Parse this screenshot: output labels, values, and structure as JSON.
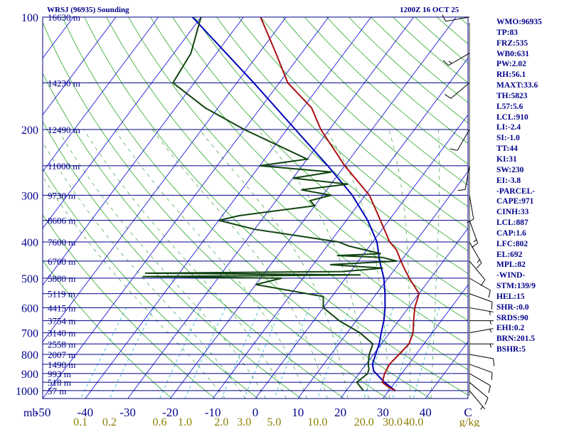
{
  "header": {
    "station": "WRSJ (96935) Sounding",
    "time": "1200Z 16 OCT 25"
  },
  "stats": [
    "WMO:96935",
    "TP:83",
    "FRZ:535",
    "WB0:631",
    "PW:2.02",
    "RH:56.1",
    "MAXT:33.6",
    "TH:5823",
    "L57:5.6",
    "LCL:910",
    "LI:-2.4",
    "SI:-1.0",
    "TT:44",
    "KI:31",
    "SW:230",
    "EI:-3.8",
    "-PARCEL-",
    "CAPE:971",
    "CINH:33",
    "LCL:887",
    "CAP:1.6",
    "LFC:802",
    "EL:692",
    "MPL:82",
    "-WIND-",
    "STM:139/9",
    "HEL:15",
    "SHR-:0.0",
    "SRDS:90",
    "EHI:0.2",
    "BRN:201.5",
    "BSHR:5"
  ],
  "colors": {
    "isobar": "#00008b",
    "isotherm": "#1c1cd8",
    "dry_adiabat": "#2aa82a",
    "moist_adiabat": "#3c9c3c",
    "mixing_ratio": "#22b4d4",
    "temperature": "#aa1111",
    "dewpoint": "#114411",
    "parcel": "#0000bb",
    "mixing_label": "#8b7d00",
    "wind": "#000000"
  },
  "chart_data": {
    "type": "skew-t",
    "pressure_labels": [
      "100",
      "200",
      "300",
      "400",
      "500",
      "600",
      "700",
      "800",
      "900",
      "1000"
    ],
    "pressure_unit": "mb",
    "temperature_ticks": [
      -50,
      -40,
      -30,
      -20,
      -10,
      0,
      10,
      20,
      30,
      40
    ],
    "temperature_axis_label": "C",
    "temperature_range": [
      -50,
      50
    ],
    "pressure_range": [
      100,
      1050
    ],
    "height_labels": [
      {
        "p": 100,
        "label": "16630 m"
      },
      {
        "p": 150,
        "label": "14230 m"
      },
      {
        "p": 200,
        "label": "12490 m"
      },
      {
        "p": 250,
        "label": "11000 m"
      },
      {
        "p": 300,
        "label": "9730 m"
      },
      {
        "p": 350,
        "label": "8606 m"
      },
      {
        "p": 400,
        "label": "7600 m"
      },
      {
        "p": 450,
        "label": "6700 m"
      },
      {
        "p": 500,
        "label": "5880 m"
      },
      {
        "p": 550,
        "label": "5119 m"
      },
      {
        "p": 600,
        "label": "4415 m"
      },
      {
        "p": 650,
        "label": "3754 m"
      },
      {
        "p": 700,
        "label": "3140 m"
      },
      {
        "p": 750,
        "label": "2558 m"
      },
      {
        "p": 800,
        "label": "2007 m"
      },
      {
        "p": 850,
        "label": "1490 m"
      },
      {
        "p": 900,
        "label": "993 m"
      },
      {
        "p": 950,
        "label": "518 m"
      },
      {
        "p": 1000,
        "label": "57 m"
      }
    ],
    "mixing_ratio_labels": [
      "0.1",
      "0.2",
      "0.6",
      "1.0",
      "2.0",
      "3.0",
      "5.0",
      "10.0",
      "20.0",
      "30.0",
      "40.0"
    ],
    "mixing_ratio_values": [
      0.1,
      0.2,
      0.6,
      1.0,
      2.0,
      3.0,
      5.0,
      10.0,
      20.0,
      30.0,
      40.0
    ],
    "mixing_ratio_unit": "g/kg",
    "isotherms_C": [
      -150,
      -140,
      -130,
      -120,
      -110,
      -100,
      -90,
      -80,
      -70,
      -60,
      -50,
      -40,
      -30,
      -20,
      -10,
      0,
      10,
      20,
      30,
      40,
      50
    ],
    "dry_adiabats_K": [
      250,
      260,
      270,
      280,
      290,
      300,
      310,
      320,
      330,
      340,
      350,
      360,
      370,
      380,
      390,
      400,
      410,
      420,
      430,
      440,
      450,
      460,
      470,
      480,
      490,
      500,
      510,
      520,
      530,
      540,
      550
    ],
    "moist_adiabats_C": [
      -10,
      -5,
      0,
      5,
      10,
      15,
      20,
      25,
      30,
      35,
      40
    ],
    "temperature": [
      {
        "p": 1000,
        "t": 31.5
      },
      {
        "p": 975,
        "t": 29
      },
      {
        "p": 950,
        "t": 27
      },
      {
        "p": 925,
        "t": 26.5
      },
      {
        "p": 900,
        "t": 26
      },
      {
        "p": 850,
        "t": 25.5
      },
      {
        "p": 800,
        "t": 26
      },
      {
        "p": 750,
        "t": 26.5
      },
      {
        "p": 700,
        "t": 25.5
      },
      {
        "p": 650,
        "t": 23.5
      },
      {
        "p": 600,
        "t": 21.5
      },
      {
        "p": 550,
        "t": 20
      },
      {
        "p": 500,
        "t": 15
      },
      {
        "p": 470,
        "t": 12
      },
      {
        "p": 450,
        "t": 10
      },
      {
        "p": 420,
        "t": 7
      },
      {
        "p": 400,
        "t": 4
      },
      {
        "p": 350,
        "t": -2
      },
      {
        "p": 300,
        "t": -9
      },
      {
        "p": 250,
        "t": -20
      },
      {
        "p": 200,
        "t": -32
      },
      {
        "p": 175,
        "t": -38
      },
      {
        "p": 150,
        "t": -48
      },
      {
        "p": 125,
        "t": -56
      },
      {
        "p": 100,
        "t": -66
      }
    ],
    "dewpoint": [
      {
        "p": 1000,
        "t": 24
      },
      {
        "p": 950,
        "t": 21
      },
      {
        "p": 900,
        "t": 22
      },
      {
        "p": 875,
        "t": 21.5
      },
      {
        "p": 850,
        "t": 20.5
      },
      {
        "p": 800,
        "t": 19
      },
      {
        "p": 750,
        "t": 18
      },
      {
        "p": 700,
        "t": 13
      },
      {
        "p": 650,
        "t": 6
      },
      {
        "p": 600,
        "t": 0
      },
      {
        "p": 560,
        "t": -2
      },
      {
        "p": 520,
        "t": -20
      },
      {
        "p": 500,
        "t": -15
      },
      {
        "p": 495,
        "t": -48
      },
      {
        "p": 490,
        "t": 3
      },
      {
        "p": 485,
        "t": -48
      },
      {
        "p": 480,
        "t": -2
      },
      {
        "p": 470,
        "t": 7
      },
      {
        "p": 460,
        "t": -6
      },
      {
        "p": 450,
        "t": 9
      },
      {
        "p": 440,
        "t": 5
      },
      {
        "p": 435,
        "t": -6
      },
      {
        "p": 430,
        "t": 4
      },
      {
        "p": 410,
        "t": -5
      },
      {
        "p": 400,
        "t": -8
      },
      {
        "p": 370,
        "t": -30
      },
      {
        "p": 350,
        "t": -40
      },
      {
        "p": 340,
        "t": -36
      },
      {
        "p": 320,
        "t": -20
      },
      {
        "p": 310,
        "t": -22
      },
      {
        "p": 300,
        "t": -18
      },
      {
        "p": 290,
        "t": -26
      },
      {
        "p": 280,
        "t": -16
      },
      {
        "p": 270,
        "t": -30
      },
      {
        "p": 260,
        "t": -22
      },
      {
        "p": 250,
        "t": -40
      },
      {
        "p": 240,
        "t": -30
      },
      {
        "p": 200,
        "t": -50
      },
      {
        "p": 175,
        "t": -63
      },
      {
        "p": 150,
        "t": -75
      },
      {
        "p": 125,
        "t": -76
      },
      {
        "p": 100,
        "t": -80
      }
    ],
    "parcel": [
      {
        "p": 1000,
        "t": 31.5
      },
      {
        "p": 950,
        "t": 27.5
      },
      {
        "p": 900,
        "t": 24
      },
      {
        "p": 887,
        "t": 23
      },
      {
        "p": 850,
        "t": 21.5
      },
      {
        "p": 800,
        "t": 20.5
      },
      {
        "p": 750,
        "t": 19.5
      },
      {
        "p": 700,
        "t": 18
      },
      {
        "p": 650,
        "t": 16.5
      },
      {
        "p": 600,
        "t": 14.5
      },
      {
        "p": 550,
        "t": 12
      },
      {
        "p": 500,
        "t": 9
      },
      {
        "p": 450,
        "t": 5
      },
      {
        "p": 400,
        "t": 1
      },
      {
        "p": 350,
        "t": -5
      },
      {
        "p": 300,
        "t": -13
      },
      {
        "p": 250,
        "t": -24
      },
      {
        "p": 200,
        "t": -38
      },
      {
        "p": 150,
        "t": -56
      },
      {
        "p": 100,
        "t": -82
      }
    ],
    "wind_barbs": [
      {
        "p": 1000,
        "dir": 140,
        "kt": 5
      },
      {
        "p": 950,
        "dir": 130,
        "kt": 10
      },
      {
        "p": 900,
        "dir": 120,
        "kt": 10
      },
      {
        "p": 850,
        "dir": 110,
        "kt": 10
      },
      {
        "p": 800,
        "dir": 100,
        "kt": 10
      },
      {
        "p": 750,
        "dir": 90,
        "kt": 5
      },
      {
        "p": 700,
        "dir": 80,
        "kt": 5
      },
      {
        "p": 650,
        "dir": 90,
        "kt": 5
      },
      {
        "p": 600,
        "dir": 100,
        "kt": 5
      },
      {
        "p": 550,
        "dir": 110,
        "kt": 10
      },
      {
        "p": 500,
        "dir": 120,
        "kt": 10
      },
      {
        "p": 450,
        "dir": 140,
        "kt": 10
      },
      {
        "p": 400,
        "dir": 150,
        "kt": 15
      },
      {
        "p": 350,
        "dir": 160,
        "kt": 15
      },
      {
        "p": 300,
        "dir": 170,
        "kt": 10
      },
      {
        "p": 250,
        "dir": 190,
        "kt": 10
      },
      {
        "p": 200,
        "dir": 210,
        "kt": 10
      },
      {
        "p": 150,
        "dir": 230,
        "kt": 10
      },
      {
        "p": 125,
        "dir": 240,
        "kt": 15
      },
      {
        "p": 100,
        "dir": 260,
        "kt": 10
      }
    ]
  }
}
